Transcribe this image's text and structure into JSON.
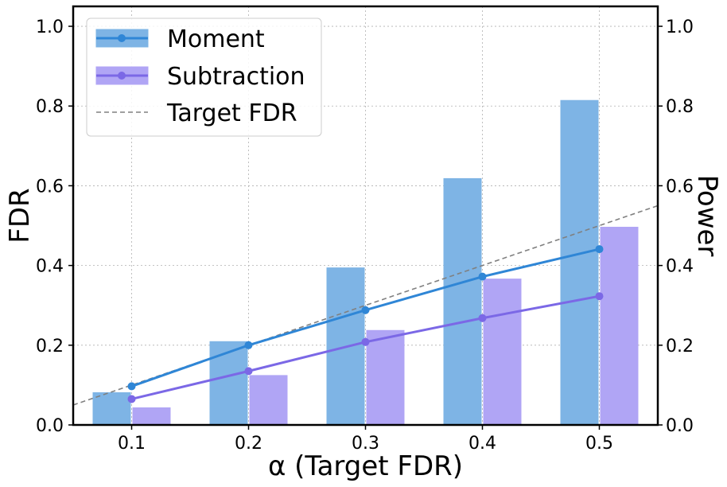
{
  "chart_data": {
    "type": "bar",
    "xlabel": "α (Target FDR)",
    "ylabel": "FDR",
    "ylabel_right": "Power",
    "xlim": [
      0.05,
      0.55
    ],
    "ylim": [
      0,
      1.05
    ],
    "ylim_right": [
      0,
      1.05
    ],
    "grid": true,
    "legend_position": "top-left",
    "x": [
      0.1,
      0.2,
      0.3,
      0.4,
      0.5
    ],
    "x_tick_labels": [
      "0.1",
      "0.2",
      "0.3",
      "0.4",
      "0.5"
    ],
    "y_ticks": [
      0.0,
      0.2,
      0.4,
      0.6,
      0.8,
      1.0
    ],
    "y_tick_labels": [
      "0.0",
      "0.2",
      "0.4",
      "0.6",
      "0.8",
      "1.0"
    ],
    "series": [
      {
        "name": "Moment",
        "color": "#2f86d6",
        "bar_color": "#7eb4e5",
        "fdr": [
          0.097,
          0.2,
          0.288,
          0.372,
          0.441
        ],
        "power": [
          0.081,
          0.209,
          0.394,
          0.618,
          0.814
        ]
      },
      {
        "name": "Subtraction",
        "color": "#7b68e6",
        "bar_color": "#b0a5f5",
        "fdr": [
          0.065,
          0.135,
          0.208,
          0.268,
          0.323
        ],
        "power": [
          0.043,
          0.124,
          0.237,
          0.366,
          0.496
        ]
      }
    ],
    "target_line": {
      "name": "Target FDR",
      "color": "#808080",
      "x": [
        0.05,
        0.55
      ],
      "y": [
        0.05,
        0.55
      ]
    }
  }
}
